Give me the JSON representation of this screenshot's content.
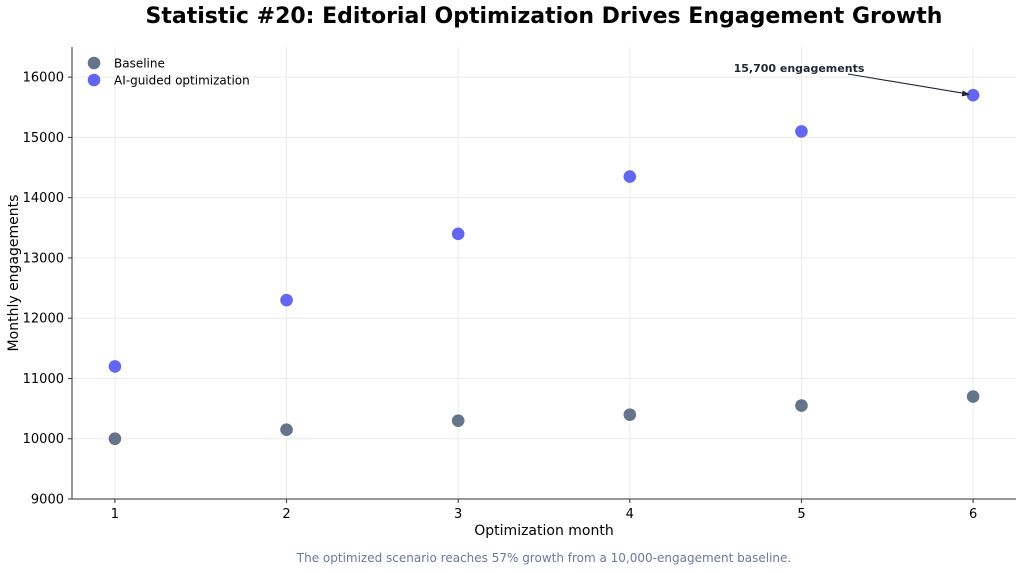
{
  "chart_data": {
    "type": "scatter",
    "title": "Statistic #20: Editorial Optimization Drives Engagement Growth",
    "xlabel": "Optimization month",
    "ylabel": "Monthly engagements",
    "x": [
      1,
      2,
      3,
      4,
      5,
      6
    ],
    "xticks": [
      1,
      2,
      3,
      4,
      5,
      6
    ],
    "yticks": [
      9000,
      10000,
      11000,
      12000,
      13000,
      14000,
      15000,
      16000
    ],
    "xlim": [
      0.75,
      6.25
    ],
    "ylim": [
      9000,
      16500
    ],
    "grid": true,
    "legend_position": "top-left",
    "series": [
      {
        "name": "Baseline",
        "color": "#64748b",
        "values": [
          10000,
          10150,
          10300,
          10400,
          10550,
          10700
        ]
      },
      {
        "name": "AI-guided optimization",
        "color": "#6366f1",
        "values": [
          11200,
          12300,
          13400,
          14350,
          15100,
          15700
        ]
      }
    ],
    "annotation": {
      "text": "15,700 engagements",
      "x": 6,
      "y": 15700
    },
    "caption": "The optimized scenario reaches 57% growth from a 10,000-engagement baseline."
  }
}
